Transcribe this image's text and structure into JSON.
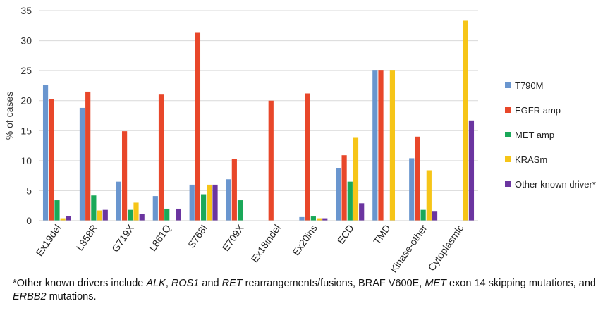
{
  "chart_data": {
    "type": "bar",
    "title": "",
    "xlabel": "",
    "ylabel": "% of cases",
    "ylim": [
      0,
      35
    ],
    "yticks": [
      "0",
      "5",
      "10",
      "15",
      "20",
      "25",
      "30",
      "35"
    ],
    "grid": true,
    "legend_position": "right",
    "categories": [
      "Ex19del",
      "L858R",
      "G719X",
      "L861Q",
      "S768I",
      "E709X",
      "Ex18indel",
      "Ex20ins",
      "ECD",
      "TMD",
      "Kinase-other",
      "Cytoplasmic"
    ],
    "series": [
      {
        "name": "T790M",
        "color": "#6a96cf",
        "values": [
          22.6,
          18.8,
          6.5,
          4.1,
          6.0,
          6.9,
          0,
          0.6,
          8.7,
          25.0,
          10.4,
          0
        ]
      },
      {
        "name": "EGFR amp",
        "color": "#e8472a",
        "values": [
          20.2,
          21.5,
          14.9,
          21.0,
          31.3,
          10.3,
          20.0,
          21.2,
          10.9,
          25.0,
          14.0,
          0
        ]
      },
      {
        "name": "MET amp",
        "color": "#1aa859",
        "values": [
          3.4,
          4.2,
          1.8,
          2.0,
          4.4,
          3.4,
          0,
          0.7,
          6.5,
          0,
          1.8,
          0
        ]
      },
      {
        "name": "KRASm",
        "color": "#f6c518",
        "values": [
          0.4,
          1.7,
          3.0,
          0,
          6.0,
          0,
          0,
          0.4,
          13.8,
          25.0,
          8.4,
          33.3
        ]
      },
      {
        "name": "Other known driver*",
        "color": "#6b35a0",
        "values": [
          0.8,
          1.8,
          1.1,
          2.0,
          6.0,
          0,
          0,
          0.4,
          2.9,
          0,
          1.5,
          16.7
        ]
      }
    ]
  },
  "footnote": {
    "p1": "*Other known drivers include ",
    "i1": "ALK",
    "p2": ", ",
    "i2": "ROS1",
    "p3": " and ",
    "i3": "RET",
    "p4": " rearrangements/fusions, BRAF V600E, ",
    "i4": "MET",
    "p5": " exon 14 skipping mutations, and ",
    "i5": "ERBB2",
    "p6": " mutations."
  }
}
